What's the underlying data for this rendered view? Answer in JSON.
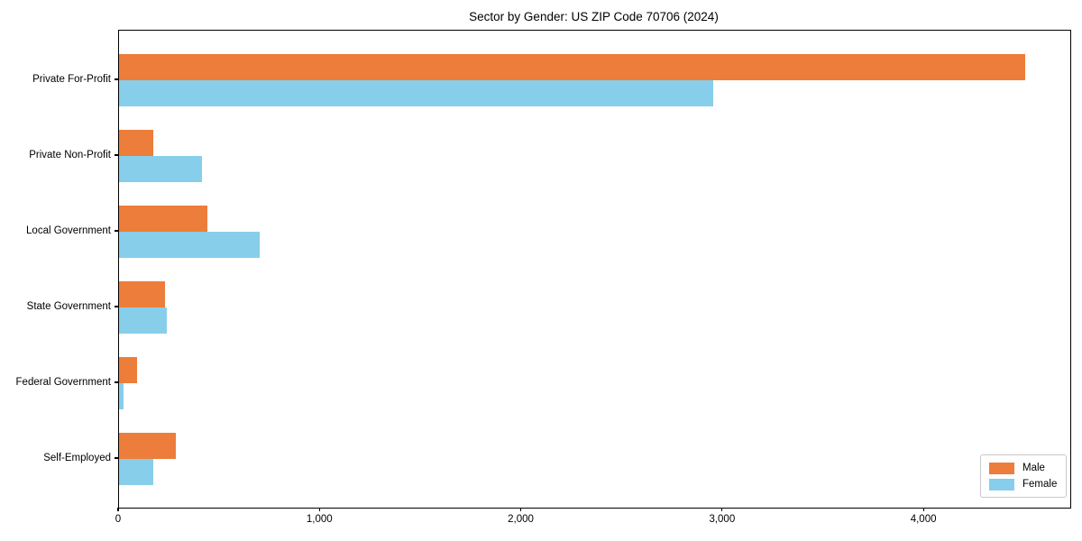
{
  "window": {
    "background": "#ffffff"
  },
  "chart_data": {
    "type": "bar",
    "orientation": "horizontal",
    "title": "Sector by Gender: US ZIP Code 70706 (2024)",
    "categories": [
      "Private For-Profit",
      "Private Non-Profit",
      "Local Government",
      "State Government",
      "Federal Government",
      "Self-Employed"
    ],
    "series": [
      {
        "name": "Male",
        "color": "#ed7d3a",
        "values": [
          4500,
          170,
          440,
          230,
          90,
          280
        ]
      },
      {
        "name": "Female",
        "color": "#87ceeb",
        "values": [
          2950,
          410,
          700,
          235,
          20,
          170
        ]
      }
    ],
    "xlabel": "",
    "ylabel": "",
    "xlim": [
      0,
      4725
    ],
    "xticks": [
      0,
      1000,
      2000,
      3000,
      4000
    ],
    "xtick_labels": [
      "0",
      "1,000",
      "2,000",
      "3,000",
      "4,000"
    ],
    "grid": false,
    "axis_color": "#000000",
    "legend": {
      "position": "lower-right",
      "items": [
        "Male",
        "Female"
      ]
    }
  }
}
